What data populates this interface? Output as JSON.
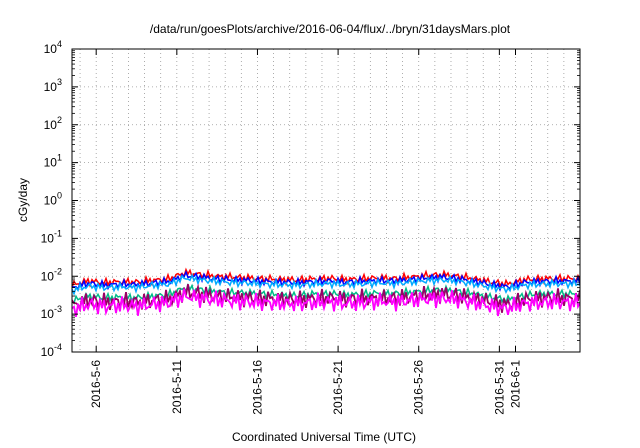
{
  "chart_data": {
    "type": "line",
    "title": "/data/run/goesPlots/archive/2016-06-04/flux/../bryn/31daysMars.plot",
    "xlabel": "Coordinated Universal Time (UTC)",
    "ylabel": "cGy/day",
    "yscale": "log",
    "ylim": [
      0.0001,
      10000
    ],
    "xlim": [
      "2016-05-04T12:00",
      "2016-06-05T00:00"
    ],
    "x_ticks": [
      "2016-05-06",
      "2016-05-11",
      "2016-05-16",
      "2016-05-21",
      "2016-05-26",
      "2016-05-31",
      "2016-06-01"
    ],
    "x_tick_labels": [
      "2016-5-6",
      "2016-5-11",
      "2016-5-16",
      "2016-5-21",
      "2016-5-26",
      "2016-5-31",
      "2016-6-1"
    ],
    "y_tick_labels": [
      {
        "base": "10",
        "exp": "4"
      },
      {
        "base": "10",
        "exp": "3"
      },
      {
        "base": "10",
        "exp": "2"
      },
      {
        "base": "10",
        "exp": "1"
      },
      {
        "base": "10",
        "exp": "0"
      },
      {
        "base": "10",
        "exp": "-1"
      },
      {
        "base": "10",
        "exp": "-2"
      },
      {
        "base": "10",
        "exp": "-3"
      },
      {
        "base": "10",
        "exp": "-4"
      }
    ],
    "grid": true,
    "x": [
      "2016-05-04T12:00",
      "2016-05-05T12:00",
      "2016-05-06T12:00",
      "2016-05-07T12:00",
      "2016-05-08T12:00",
      "2016-05-09T12:00",
      "2016-05-10T12:00",
      "2016-05-11T12:00",
      "2016-05-12T12:00",
      "2016-05-13T12:00",
      "2016-05-14T12:00",
      "2016-05-15T12:00",
      "2016-05-16T12:00",
      "2016-05-17T12:00",
      "2016-05-18T12:00",
      "2016-05-19T12:00",
      "2016-05-20T12:00",
      "2016-05-21T12:00",
      "2016-05-22T12:00",
      "2016-05-23T12:00",
      "2016-05-24T12:00",
      "2016-05-25T12:00",
      "2016-05-26T12:00",
      "2016-05-27T12:00",
      "2016-05-28T12:00",
      "2016-05-29T12:00",
      "2016-05-30T12:00",
      "2016-05-31T12:00",
      "2016-06-01T12:00",
      "2016-06-02T12:00",
      "2016-06-03T12:00",
      "2016-06-04T12:00"
    ],
    "series": [
      {
        "color": "#ff0000",
        "values": [
          0.0058,
          0.0075,
          0.0068,
          0.0072,
          0.007,
          0.0078,
          0.0085,
          0.0125,
          0.011,
          0.01,
          0.0095,
          0.009,
          0.0085,
          0.0082,
          0.008,
          0.0085,
          0.0088,
          0.0082,
          0.0086,
          0.009,
          0.0087,
          0.0095,
          0.0105,
          0.011,
          0.01,
          0.0085,
          0.007,
          0.0062,
          0.008,
          0.0085,
          0.0088,
          0.0086
        ]
      },
      {
        "color": "#0000ff",
        "values": [
          0.005,
          0.0065,
          0.0058,
          0.0062,
          0.006,
          0.0067,
          0.0072,
          0.0105,
          0.0095,
          0.0085,
          0.008,
          0.0078,
          0.0073,
          0.007,
          0.0068,
          0.0073,
          0.0075,
          0.007,
          0.0074,
          0.0077,
          0.0075,
          0.0082,
          0.009,
          0.0095,
          0.0085,
          0.0073,
          0.006,
          0.0053,
          0.0068,
          0.0073,
          0.0075,
          0.0074
        ]
      },
      {
        "color": "#00aaff",
        "values": [
          0.0042,
          0.0055,
          0.005,
          0.0052,
          0.0051,
          0.0057,
          0.0062,
          0.009,
          0.008,
          0.0073,
          0.0068,
          0.0066,
          0.0062,
          0.006,
          0.0058,
          0.0062,
          0.0064,
          0.006,
          0.0063,
          0.0066,
          0.0064,
          0.007,
          0.0077,
          0.008,
          0.0073,
          0.0062,
          0.0051,
          0.0045,
          0.0058,
          0.0062,
          0.0064,
          0.0063
        ]
      },
      {
        "color": "#00bb88",
        "values": [
          0.0022,
          0.003,
          0.0027,
          0.0028,
          0.0027,
          0.003,
          0.0033,
          0.005,
          0.0044,
          0.004,
          0.0037,
          0.0036,
          0.0034,
          0.0032,
          0.0031,
          0.0034,
          0.0035,
          0.0032,
          0.0034,
          0.0036,
          0.0035,
          0.0038,
          0.0042,
          0.0044,
          0.004,
          0.0034,
          0.0028,
          0.0024,
          0.0031,
          0.0034,
          0.0035,
          0.0034
        ]
      },
      {
        "color": "#990066",
        "values": [
          0.0017,
          0.0023,
          0.0021,
          0.0022,
          0.0021,
          0.0023,
          0.0025,
          0.0038,
          0.0034,
          0.003,
          0.0028,
          0.0027,
          0.0026,
          0.0025,
          0.0024,
          0.0026,
          0.0027,
          0.0025,
          0.0026,
          0.0027,
          0.0026,
          0.0029,
          0.0032,
          0.0034,
          0.0031,
          0.0026,
          0.0021,
          0.0018,
          0.0024,
          0.0026,
          0.0027,
          0.0026
        ]
      },
      {
        "color": "#ff00ff",
        "values": [
          0.0013,
          0.0018,
          0.0016,
          0.0017,
          0.0016,
          0.0018,
          0.002,
          0.003,
          0.0026,
          0.0024,
          0.0022,
          0.0021,
          0.002,
          0.0019,
          0.0019,
          0.002,
          0.0021,
          0.0019,
          0.002,
          0.0022,
          0.0021,
          0.0023,
          0.0025,
          0.0026,
          0.0024,
          0.002,
          0.0016,
          0.0014,
          0.0019,
          0.002,
          0.0021,
          0.002
        ]
      }
    ]
  }
}
